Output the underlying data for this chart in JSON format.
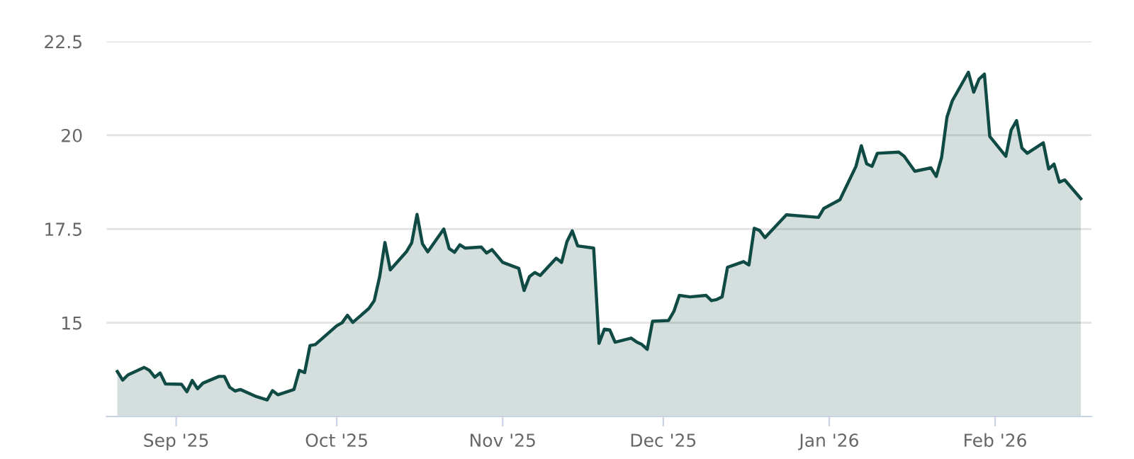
{
  "chart_data": {
    "type": "area",
    "x": [
      "2025-08-21",
      "2025-08-22",
      "2025-08-23",
      "2025-08-26",
      "2025-08-27",
      "2025-08-28",
      "2025-08-29",
      "2025-08-30",
      "2025-09-02",
      "2025-09-03",
      "2025-09-04",
      "2025-09-05",
      "2025-09-06",
      "2025-09-09",
      "2025-09-10",
      "2025-09-11",
      "2025-09-12",
      "2025-09-13",
      "2025-09-16",
      "2025-09-18",
      "2025-09-19",
      "2025-09-20",
      "2025-09-23",
      "2025-09-24",
      "2025-09-25",
      "2025-09-26",
      "2025-09-27",
      "2025-10-01",
      "2025-10-02",
      "2025-10-03",
      "2025-10-04",
      "2025-10-07",
      "2025-10-08",
      "2025-10-09",
      "2025-10-10",
      "2025-10-11",
      "2025-10-14",
      "2025-10-15",
      "2025-10-16",
      "2025-10-17",
      "2025-10-18",
      "2025-10-21",
      "2025-10-22",
      "2025-10-23",
      "2025-10-24",
      "2025-10-25",
      "2025-10-28",
      "2025-10-29",
      "2025-10-30",
      "2025-11-01",
      "2025-11-04",
      "2025-11-05",
      "2025-11-06",
      "2025-11-07",
      "2025-11-08",
      "2025-11-11",
      "2025-11-12",
      "2025-11-13",
      "2025-11-14",
      "2025-11-15",
      "2025-11-18",
      "2025-11-19",
      "2025-11-20",
      "2025-11-21",
      "2025-11-22",
      "2025-11-25",
      "2025-11-26",
      "2025-11-27",
      "2025-11-28",
      "2025-11-29",
      "2025-12-02",
      "2025-12-03",
      "2025-12-04",
      "2025-12-06",
      "2025-12-09",
      "2025-12-10",
      "2025-12-11",
      "2025-12-12",
      "2025-12-13",
      "2025-12-16",
      "2025-12-17",
      "2025-12-18",
      "2025-12-19",
      "2025-12-20",
      "2025-12-24",
      "2025-12-30",
      "2025-12-31",
      "2026-01-03",
      "2026-01-06",
      "2026-01-07",
      "2026-01-08",
      "2026-01-09",
      "2026-01-10",
      "2026-01-14",
      "2026-01-15",
      "2026-01-17",
      "2026-01-20",
      "2026-01-21",
      "2026-01-22",
      "2026-01-23",
      "2026-01-24",
      "2026-01-27",
      "2026-01-28",
      "2026-01-29",
      "2026-01-30",
      "2026-01-31",
      "2026-02-03",
      "2026-02-04",
      "2026-02-05",
      "2026-02-06",
      "2026-02-07",
      "2026-02-10",
      "2026-02-11",
      "2026-02-12",
      "2026-02-13",
      "2026-02-14",
      "2026-02-17"
    ],
    "series": [
      {
        "color": "#0f4a45",
        "values": [
          13.7,
          13.47,
          13.61,
          13.81,
          13.73,
          13.55,
          13.66,
          13.37,
          13.36,
          13.16,
          13.46,
          13.24,
          13.39,
          13.57,
          13.57,
          13.28,
          13.18,
          13.22,
          13.03,
          12.94,
          13.19,
          13.08,
          13.22,
          13.73,
          13.67,
          14.39,
          14.42,
          14.92,
          15.0,
          15.2,
          15.01,
          15.38,
          15.59,
          16.22,
          17.14,
          16.41,
          16.89,
          17.13,
          17.89,
          17.11,
          16.89,
          17.5,
          16.98,
          16.88,
          17.08,
          16.99,
          17.02,
          16.86,
          16.95,
          16.61,
          16.45,
          15.86,
          16.23,
          16.34,
          16.26,
          16.72,
          16.61,
          17.16,
          17.45,
          17.05,
          16.99,
          14.45,
          14.83,
          14.81,
          14.48,
          14.59,
          14.49,
          14.42,
          14.29,
          15.04,
          15.06,
          15.31,
          15.73,
          15.69,
          15.73,
          15.59,
          15.62,
          15.69,
          16.48,
          16.63,
          16.54,
          17.52,
          17.46,
          17.27,
          17.88,
          17.81,
          18.05,
          18.28,
          19.17,
          19.72,
          19.24,
          19.17,
          19.52,
          19.55,
          19.44,
          19.04,
          19.13,
          18.9,
          19.41,
          20.48,
          20.92,
          21.68,
          21.15,
          21.5,
          21.63,
          19.97,
          19.44,
          20.14,
          20.39,
          19.66,
          19.52,
          19.8,
          19.1,
          19.23,
          18.75,
          18.81,
          18.31
        ]
      }
    ],
    "xlim": [
      "2025-08-19",
      "2026-02-19"
    ],
    "xticks": [
      {
        "value": "2025-09-01",
        "label": "Sep '25"
      },
      {
        "value": "2025-10-01",
        "label": "Oct '25"
      },
      {
        "value": "2025-11-01",
        "label": "Nov '25"
      },
      {
        "value": "2025-12-01",
        "label": "Dec '25"
      },
      {
        "value": "2026-01-01",
        "label": "Jan '26"
      },
      {
        "value": "2026-02-01",
        "label": "Feb '26"
      }
    ],
    "ylim": [
      12.5,
      22.5
    ],
    "yticks": [
      15,
      17.5,
      20,
      22.5
    ],
    "grid": "y"
  }
}
